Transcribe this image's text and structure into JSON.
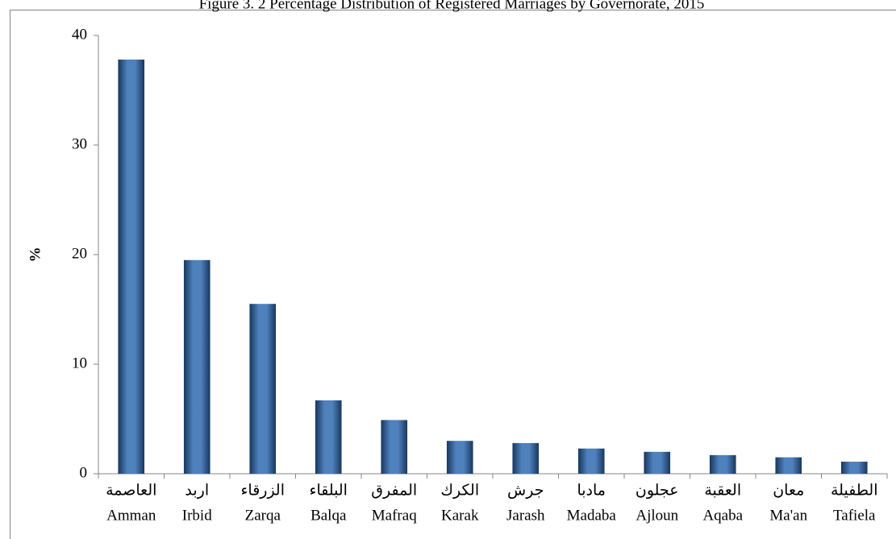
{
  "chart_data": {
    "type": "bar",
    "title": "Figure 3. 2 Percentage Distribution of Registered Marriages by Governorate, 2015",
    "y_label": "%",
    "categories": [
      "Amman",
      "Irbid",
      "Zarqa",
      "Balqa",
      "Mafraq",
      "Karak",
      "Jarash",
      "Madaba",
      "Ajloun",
      "Aqaba",
      "Ma'an",
      "Tafiela"
    ],
    "arabic_labels": [
      "العاصمة",
      "اربد",
      "الزرقاء",
      "البلقاء",
      "المفرق",
      "الكرك",
      "جرش",
      "مادبا",
      "عجلون",
      "العقبة",
      "معان",
      "الطفيلة"
    ],
    "values": [
      37.8,
      19.5,
      15.5,
      6.7,
      4.9,
      3.0,
      2.8,
      2.3,
      2.0,
      1.7,
      1.5,
      1.1
    ],
    "color": "#4f81bd",
    "ylim": [
      0,
      40
    ],
    "yticks": [
      0,
      10,
      20,
      30,
      40
    ],
    "grid": false
  }
}
